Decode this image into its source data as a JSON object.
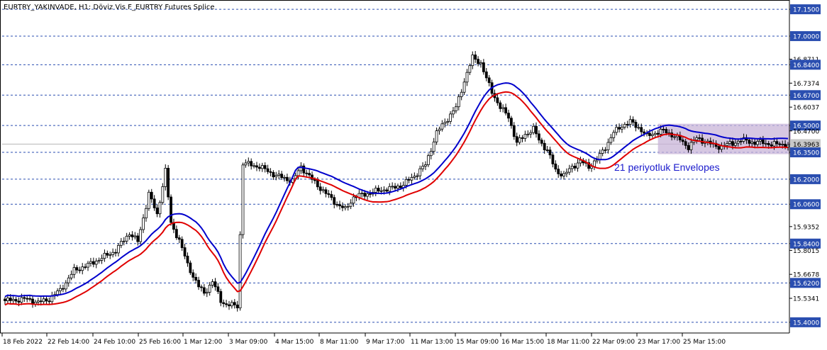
{
  "title": "EURTRY_YAKINVADE, H1:  Döviz Vis F_EURTRY Futures Splice",
  "chart_data": {
    "type": "candlestick",
    "symbol": "EURTRY_YAKINVADE",
    "timeframe": "H1",
    "description": "Döviz Vis F_EURTRY Futures Splice",
    "ylim": [
      15.34,
      17.19
    ],
    "x_ticks": [
      "18 Feb 2022",
      "22 Feb 14:00",
      "24 Feb 10:00",
      "25 Feb 16:00",
      "1 Mar 12:00",
      "3 Mar 09:00",
      "4 Mar 15:00",
      "8 Mar 11:00",
      "9 Mar 17:00",
      "11 Mar 13:00",
      "15 Mar 09:00",
      "16 Mar 15:00",
      "18 Mar 11:00",
      "22 Mar 09:00",
      "23 Mar 17:00",
      "25 Mar 15:00"
    ],
    "y_ticks": [
      {
        "value": 17.15,
        "label": "17.1500",
        "boxed": true
      },
      {
        "value": 17.0,
        "label": "17.0000",
        "boxed": true
      },
      {
        "value": 16.871,
        "label": "16.8711",
        "boxed": false
      },
      {
        "value": 16.84,
        "label": "16.8400",
        "boxed": true
      },
      {
        "value": 16.737,
        "label": "16.7374",
        "boxed": false
      },
      {
        "value": 16.67,
        "label": "16.6700",
        "boxed": true
      },
      {
        "value": 16.603,
        "label": "16.6037",
        "boxed": false
      },
      {
        "value": 16.5,
        "label": "16.5000",
        "boxed": true
      },
      {
        "value": 16.47,
        "label": "16.4700",
        "boxed": false
      },
      {
        "value": 16.396,
        "label": "16.3963",
        "boxed": "current"
      },
      {
        "value": 16.35,
        "label": "16.3500",
        "boxed": true
      },
      {
        "value": 16.2,
        "label": "16.2000",
        "boxed": true
      },
      {
        "value": 16.06,
        "label": "16.0600",
        "boxed": true
      },
      {
        "value": 15.935,
        "label": "15.9352",
        "boxed": false
      },
      {
        "value": 15.84,
        "label": "15.8400",
        "boxed": true
      },
      {
        "value": 15.802,
        "label": "15.8015",
        "boxed": false
      },
      {
        "value": 15.668,
        "label": "15.6678",
        "boxed": false
      },
      {
        "value": 15.62,
        "label": "15.6200",
        "boxed": true
      },
      {
        "value": 15.534,
        "label": "15.5341",
        "boxed": false
      },
      {
        "value": 15.4,
        "label": "15.4000",
        "boxed": true
      }
    ],
    "horizontal_levels": [
      17.15,
      17.0,
      16.84,
      16.67,
      16.5,
      16.35,
      16.2,
      16.06,
      15.84,
      15.62,
      15.4
    ],
    "current_price": 16.396,
    "close_anchors": [
      [
        0,
        15.52
      ],
      [
        8,
        15.53
      ],
      [
        12,
        15.51
      ],
      [
        16,
        15.53
      ],
      [
        20,
        15.58
      ],
      [
        25,
        15.69
      ],
      [
        30,
        15.72
      ],
      [
        35,
        15.76
      ],
      [
        40,
        15.8
      ],
      [
        45,
        15.9
      ],
      [
        48,
        15.85
      ],
      [
        52,
        16.12
      ],
      [
        55,
        16.0
      ],
      [
        58,
        16.25
      ],
      [
        60,
        15.95
      ],
      [
        63,
        15.86
      ],
      [
        66,
        15.72
      ],
      [
        70,
        15.6
      ],
      [
        72,
        15.56
      ],
      [
        75,
        15.63
      ],
      [
        78,
        15.52
      ],
      [
        80,
        15.5
      ],
      [
        84,
        15.49
      ],
      [
        86,
        16.29
      ],
      [
        92,
        16.27
      ],
      [
        98,
        16.22
      ],
      [
        104,
        16.19
      ],
      [
        107,
        16.27
      ],
      [
        112,
        16.18
      ],
      [
        116,
        16.12
      ],
      [
        120,
        16.06
      ],
      [
        123,
        16.03
      ],
      [
        126,
        16.1
      ],
      [
        131,
        16.12
      ],
      [
        136,
        16.14
      ],
      [
        140,
        16.15
      ],
      [
        144,
        16.17
      ],
      [
        148,
        16.22
      ],
      [
        152,
        16.28
      ],
      [
        156,
        16.46
      ],
      [
        160,
        16.54
      ],
      [
        163,
        16.6
      ],
      [
        166,
        16.75
      ],
      [
        169,
        16.88
      ],
      [
        172,
        16.85
      ],
      [
        174,
        16.76
      ],
      [
        176,
        16.69
      ],
      [
        179,
        16.6
      ],
      [
        182,
        16.55
      ],
      [
        185,
        16.4
      ],
      [
        188,
        16.45
      ],
      [
        191,
        16.48
      ],
      [
        193,
        16.42
      ],
      [
        196,
        16.36
      ],
      [
        199,
        16.25
      ],
      [
        202,
        16.22
      ],
      [
        205,
        16.27
      ],
      [
        208,
        16.3
      ],
      [
        211,
        16.27
      ],
      [
        214,
        16.31
      ],
      [
        217,
        16.38
      ],
      [
        220,
        16.46
      ],
      [
        223,
        16.5
      ],
      [
        226,
        16.52
      ],
      [
        229,
        16.49
      ],
      [
        232,
        16.44
      ],
      [
        235,
        16.46
      ],
      [
        238,
        16.47
      ],
      [
        241,
        16.45
      ],
      [
        244,
        16.42
      ],
      [
        247,
        16.38
      ],
      [
        250,
        16.43
      ],
      [
        253,
        16.41
      ],
      [
        256,
        16.39
      ],
      [
        259,
        16.38
      ],
      [
        262,
        16.4
      ],
      [
        265,
        16.41
      ],
      [
        268,
        16.42
      ],
      [
        271,
        16.4
      ],
      [
        274,
        16.41
      ],
      [
        277,
        16.39
      ],
      [
        280,
        16.4
      ],
      [
        283,
        16.39
      ]
    ],
    "series": [
      {
        "name": "",
        "role": "envelope-upper",
        "color": "#0000cc"
      },
      {
        "name": "",
        "role": "envelope-lower",
        "color": "#e00000"
      }
    ],
    "envelope": {
      "period": 21,
      "deviation_pct": 0.15
    },
    "annotation": {
      "text": "21 periyotluk Envelopes",
      "color": "#1a1acc",
      "highlight_color": "#c8b4d8",
      "price_range": [
        16.34,
        16.51
      ]
    },
    "colors": {
      "background": "#ffffff",
      "grid": "#2a4eb0",
      "tag_bg": "#2a4eb0",
      "current_tag_bg": "#c8c8c8",
      "candle": "#000000",
      "axis": "#000000"
    }
  }
}
